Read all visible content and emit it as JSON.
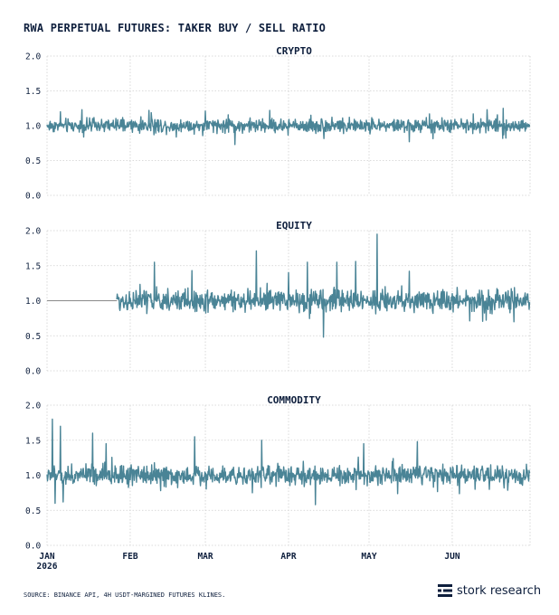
{
  "title": "RWA PERPETUAL FUTURES: TAKER BUY / SELL RATIO",
  "source": "SOURCE: BINANCE API, 4H USDT-MARGINED FUTURES KLINES.",
  "brand": {
    "name": "stork research",
    "logo_icon": "stork-logo-icon"
  },
  "colors": {
    "series": "#4a8496",
    "text": "#0e1f3d",
    "grid": "#cfcfcf",
    "baseline": "#8a8a8a"
  },
  "chart_data": [
    {
      "type": "line",
      "title": "CRYPTO",
      "ylim": [
        0,
        2.0
      ],
      "yticks": [
        "0.0",
        "0.5",
        "1.0",
        "1.5",
        "2.0"
      ],
      "x_range": [
        "2026-01-01",
        "2026-06-30"
      ],
      "series": [
        {
          "start": "2026-01-01",
          "end": "2026-06-30",
          "interval": "4h",
          "baseline": 1.0,
          "typical_range": [
            0.88,
            1.12
          ],
          "extremes": [
            {
              "date": "2026-01-06",
              "value": 1.2
            },
            {
              "date": "2026-01-14",
              "value": 1.23
            },
            {
              "date": "2026-02-08",
              "value": 1.22
            },
            {
              "date": "2026-03-01",
              "value": 1.21
            },
            {
              "date": "2026-03-25",
              "value": 1.22
            },
            {
              "date": "2026-03-12",
              "value": 0.73
            },
            {
              "date": "2026-05-16",
              "value": 0.77
            },
            {
              "date": "2026-06-14",
              "value": 1.23
            },
            {
              "date": "2026-06-20",
              "value": 1.25
            }
          ]
        }
      ]
    },
    {
      "type": "line",
      "title": "EQUITY",
      "ylim": [
        0,
        2.0
      ],
      "yticks": [
        "0.0",
        "0.5",
        "1.0",
        "1.5",
        "2.0"
      ],
      "x_range": [
        "2026-01-01",
        "2026-06-30"
      ],
      "series": [
        {
          "start": "2026-01-27",
          "end": "2026-06-30",
          "interval": "4h",
          "baseline": 1.0,
          "typical_range": [
            0.82,
            1.2
          ],
          "flat_before_start": 1.0,
          "extremes": [
            {
              "date": "2026-02-10",
              "value": 1.55
            },
            {
              "date": "2026-02-24",
              "value": 1.43
            },
            {
              "date": "2026-03-20",
              "value": 1.71
            },
            {
              "date": "2026-04-01",
              "value": 1.4
            },
            {
              "date": "2026-04-08",
              "value": 1.55
            },
            {
              "date": "2026-04-14",
              "value": 0.48
            },
            {
              "date": "2026-04-19",
              "value": 1.55
            },
            {
              "date": "2026-04-26",
              "value": 1.56
            },
            {
              "date": "2026-05-04",
              "value": 1.95
            },
            {
              "date": "2026-05-16",
              "value": 1.42
            },
            {
              "date": "2026-06-24",
              "value": 0.7
            }
          ]
        }
      ]
    },
    {
      "type": "line",
      "title": "COMMODITY",
      "ylim": [
        0,
        2.0
      ],
      "yticks": [
        "0.0",
        "0.5",
        "1.0",
        "1.5",
        "2.0"
      ],
      "x_range": [
        "2026-01-01",
        "2026-06-30"
      ],
      "xticks": [
        "JAN",
        "FEB",
        "MAR",
        "APR",
        "MAY",
        "JUN"
      ],
      "xtick_sub": "2026",
      "series": [
        {
          "start": "2026-01-01",
          "end": "2026-06-30",
          "interval": "4h",
          "baseline": 1.0,
          "typical_range": [
            0.85,
            1.18
          ],
          "extremes": [
            {
              "date": "2026-01-03",
              "value": 1.8
            },
            {
              "date": "2026-01-06",
              "value": 1.7
            },
            {
              "date": "2026-01-04",
              "value": 0.6
            },
            {
              "date": "2026-01-07",
              "value": 0.62
            },
            {
              "date": "2026-01-18",
              "value": 1.6
            },
            {
              "date": "2026-01-23",
              "value": 1.45
            },
            {
              "date": "2026-02-25",
              "value": 1.55
            },
            {
              "date": "2026-03-22",
              "value": 1.5
            },
            {
              "date": "2026-04-11",
              "value": 0.58
            },
            {
              "date": "2026-04-29",
              "value": 1.45
            },
            {
              "date": "2026-05-19",
              "value": 1.48
            }
          ]
        }
      ]
    }
  ]
}
